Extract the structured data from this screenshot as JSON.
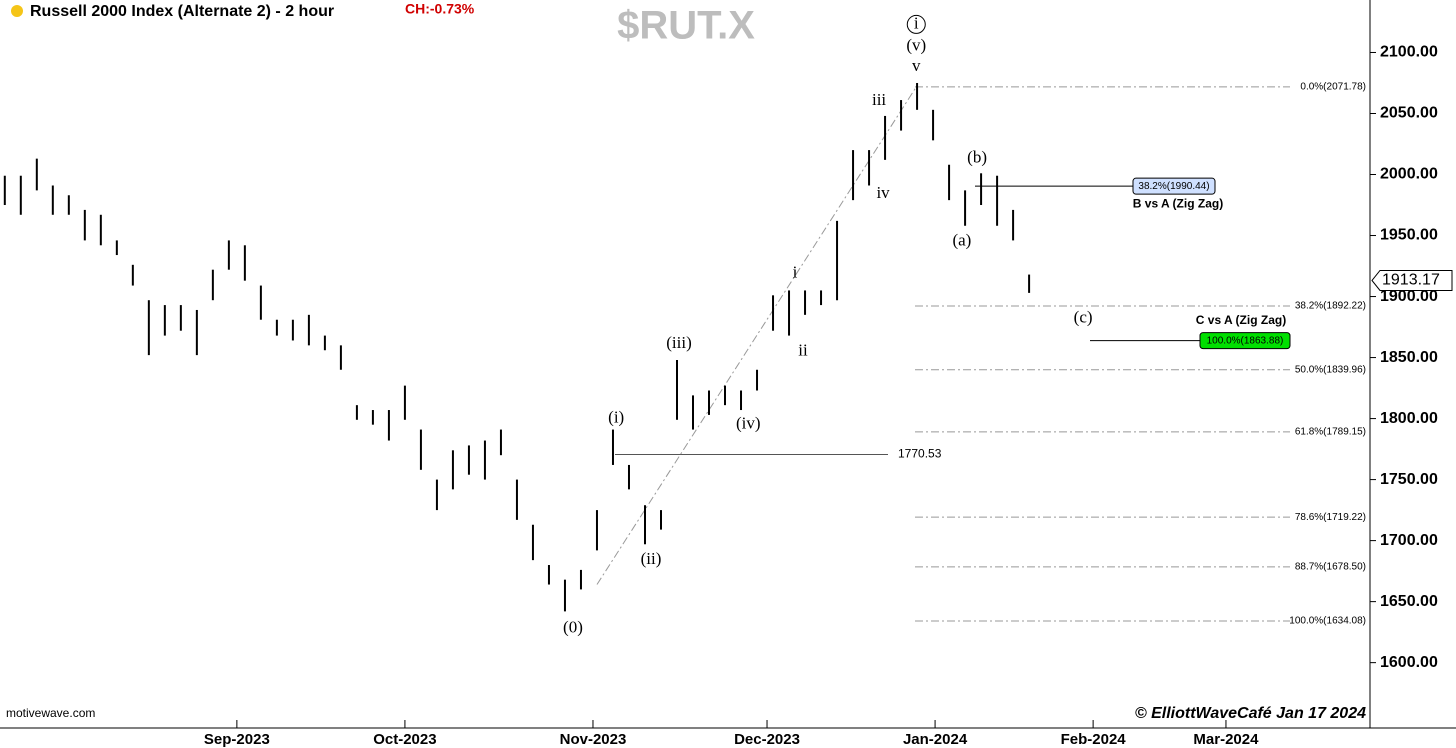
{
  "chart_data": {
    "type": "ohlc",
    "title": "Russell 2000 Index (Alternate 2) - 2 hour",
    "change": "CH:-0.73%",
    "symbol": "$RUT.X",
    "source": "motivewave.com",
    "credit": "© ElliottWaveCafé Jan 17 2024",
    "color": "#000000",
    "x": [
      -29,
      -27,
      -25,
      -23,
      -21,
      -19,
      -17,
      -15,
      -13,
      -11,
      -9,
      -7,
      -5,
      -3,
      -1,
      1,
      3,
      5,
      7,
      9,
      11,
      13,
      15,
      17,
      19,
      21,
      23,
      25,
      27,
      29,
      31,
      33,
      35,
      37,
      39,
      41,
      43,
      45,
      47,
      49,
      51,
      53,
      55,
      57,
      59,
      61,
      63,
      65,
      67,
      69,
      71,
      73,
      75,
      77,
      79,
      81,
      83,
      85,
      87,
      89,
      91,
      93,
      95,
      97,
      99
    ],
    "high": [
      1999,
      1999,
      2013,
      1991,
      1983,
      1971,
      1967,
      1946,
      1926,
      1897,
      1893,
      1893,
      1889,
      1922,
      1946,
      1942,
      1909,
      1881,
      1881,
      1885,
      1868,
      1860,
      1811,
      1807,
      1807,
      1827,
      1791,
      1750,
      1774,
      1778,
      1782,
      1791,
      1750,
      1713,
      1680,
      1668,
      1676,
      1725,
      1791,
      1762,
      1729,
      1725,
      1848,
      1819,
      1823,
      1827,
      1823,
      1840,
      1901,
      1905,
      1905,
      1905,
      1962,
      2020,
      2020,
      2048,
      2061,
      2075,
      2053,
      2008,
      1987,
      2001,
      1999,
      1971,
      1918
    ],
    "low": [
      1975,
      1967,
      1987,
      1967,
      1967,
      1946,
      1942,
      1934,
      1909,
      1852,
      1868,
      1872,
      1852,
      1897,
      1922,
      1913,
      1881,
      1868,
      1864,
      1860,
      1856,
      1840,
      1799,
      1795,
      1782,
      1799,
      1758,
      1725,
      1742,
      1754,
      1750,
      1770,
      1717,
      1684,
      1664,
      1642,
      1660,
      1692,
      1762,
      1742,
      1697,
      1709,
      1799,
      1791,
      1803,
      1811,
      1807,
      1823,
      1872,
      1868,
      1885,
      1893,
      1897,
      1979,
      1991,
      2012,
      2036,
      2053,
      2028,
      1979,
      1958,
      1975,
      1958,
      1946,
      1903
    ],
    "xlim": [
      -29.6,
      141.6
    ],
    "xticks": [
      {
        "value": 0,
        "label": "Sep-2023"
      },
      {
        "value": 21,
        "label": "Oct-2023"
      },
      {
        "value": 44.5,
        "label": "Nov-2023"
      },
      {
        "value": 66.25,
        "label": "Dec-2023"
      },
      {
        "value": 87.25,
        "label": "Jan-2024"
      },
      {
        "value": 107,
        "label": "Feb-2024"
      },
      {
        "value": 123.6,
        "label": "Mar-2024"
      }
    ],
    "ylim": [
      1553,
      2143
    ],
    "yticks": [
      {
        "value": 1600,
        "label": "1600.00"
      },
      {
        "value": 1650,
        "label": "1650.00"
      },
      {
        "value": 1700,
        "label": "1700.00"
      },
      {
        "value": 1750,
        "label": "1750.00"
      },
      {
        "value": 1800,
        "label": "1800.00"
      },
      {
        "value": 1850,
        "label": "1850.00"
      },
      {
        "value": 1900,
        "label": "1900.00"
      },
      {
        "value": 1950,
        "label": "1950.00"
      },
      {
        "value": 2000,
        "label": "2000.00"
      },
      {
        "value": 2050,
        "label": "2050.00"
      },
      {
        "value": 2100,
        "label": "2100.00"
      }
    ],
    "last_price": 1913.17,
    "fib_levels": [
      {
        "value": 2071.78,
        "label": "0.0%(2071.78)"
      },
      {
        "value": 1892.22,
        "label": "38.2%(1892.22)"
      },
      {
        "value": 1839.96,
        "label": "50.0%(1839.96)"
      },
      {
        "value": 1789.15,
        "label": "61.8%(1789.15)"
      },
      {
        "value": 1719.22,
        "label": "78.6%(1719.22)"
      },
      {
        "value": 1678.5,
        "label": "88.7%(1678.50)"
      },
      {
        "value": 1634.08,
        "label": "100.0%(1634.08)"
      }
    ],
    "level_line": 1770.53,
    "targets": [
      {
        "value": 1990.44,
        "label": "38.2%(1990.44)",
        "caption": "B vs A (Zig Zag)",
        "color": "#cfe0ff"
      },
      {
        "value": 1863.88,
        "label": "100.0%(1863.88)",
        "caption": "C vs A (Zig Zag)",
        "color": "#00e000"
      }
    ],
    "trend_line": {
      "x": [
        45,
        84.9
      ],
      "y": [
        1664,
        2071.78
      ]
    },
    "annotations": [
      {
        "text": "(0)",
        "x": 42,
        "y": 1628
      },
      {
        "text": "(i)",
        "x": 47.4,
        "y": 1800
      },
      {
        "text": "(ii)",
        "x": 51.75,
        "y": 1684
      },
      {
        "text": "(iii)",
        "x": 55.25,
        "y": 1861
      },
      {
        "text": "(iv)",
        "x": 63.9,
        "y": 1795
      },
      {
        "text": "i",
        "x": 69.75,
        "y": 1919
      },
      {
        "text": "ii",
        "x": 70.75,
        "y": 1855
      },
      {
        "text": "iii",
        "x": 80.25,
        "y": 2060
      },
      {
        "text": "iv",
        "x": 80.75,
        "y": 1984
      },
      {
        "text": "v",
        "x": 84.9,
        "y": 2088
      },
      {
        "text": "(v)",
        "x": 84.9,
        "y": 2105
      },
      {
        "text": "i",
        "x": 84.9,
        "y": 2123,
        "circled": true
      },
      {
        "text": "(a)",
        "x": 90.6,
        "y": 1945
      },
      {
        "text": "(b)",
        "x": 92.5,
        "y": 2013
      },
      {
        "text": "(c)",
        "x": 105.75,
        "y": 1882
      }
    ]
  }
}
